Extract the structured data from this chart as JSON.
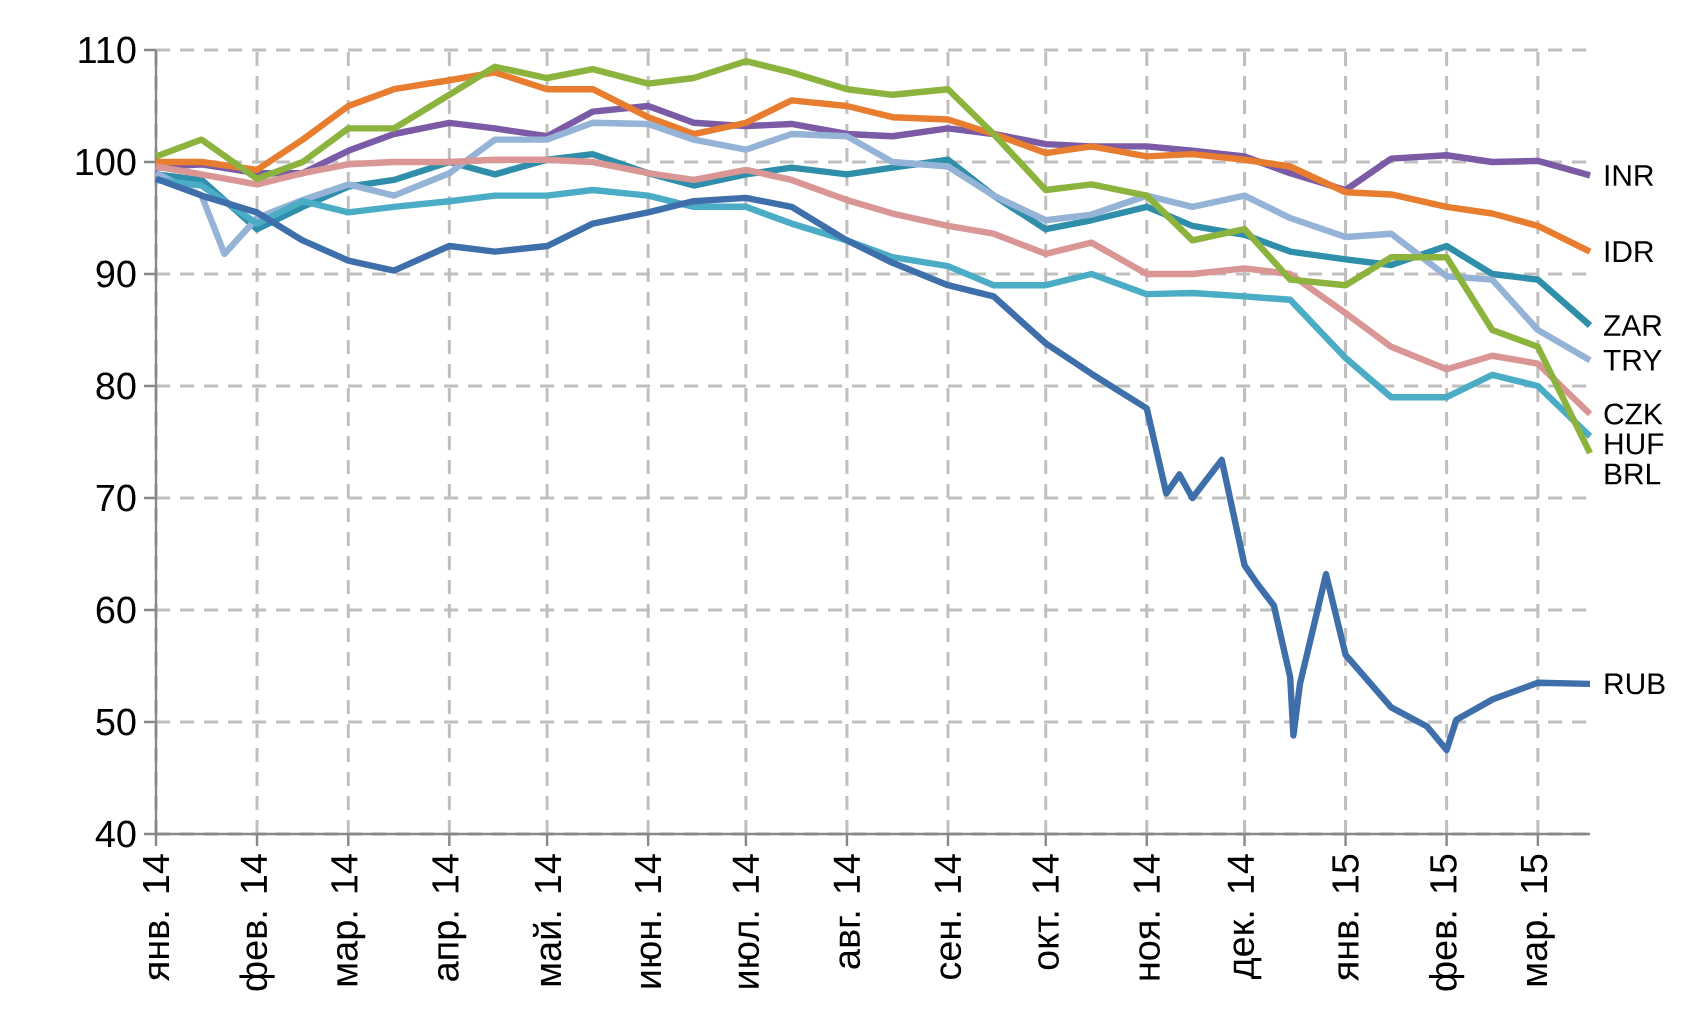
{
  "chart_data": {
    "type": "line",
    "x": [
      "2014-01-01",
      "2014-01-15",
      "2014-02-01",
      "2014-02-15",
      "2014-03-01",
      "2014-03-15",
      "2014-04-01",
      "2014-04-15",
      "2014-05-01",
      "2014-05-15",
      "2014-06-01",
      "2014-06-15",
      "2014-07-01",
      "2014-07-15",
      "2014-08-01",
      "2014-08-15",
      "2014-09-01",
      "2014-09-15",
      "2014-10-01",
      "2014-10-15",
      "2014-11-01",
      "2014-11-15",
      "2014-12-01",
      "2014-12-15",
      "2015-01-01",
      "2015-01-15",
      "2015-02-01",
      "2015-02-15",
      "2015-03-01",
      "2015-03-17"
    ],
    "series": [
      {
        "name": "INR",
        "color": "#7b5aa6",
        "values": [
          99.5,
          99.8,
          99,
          99,
          101,
          102.5,
          103.5,
          103,
          102.3,
          104.5,
          105,
          103.5,
          103.2,
          103.4,
          102.5,
          102.3,
          103,
          102.5,
          101.6,
          101.4,
          101.4,
          101,
          100.5,
          99,
          97.5,
          100.3,
          100.6,
          100,
          100.1,
          98.8
        ]
      },
      {
        "name": "IDR",
        "color": "#e87d2f",
        "values": [
          100,
          100,
          99.3,
          102,
          105,
          106.5,
          107.3,
          108,
          106.5,
          106.5,
          104,
          102.5,
          103.5,
          105.5,
          105,
          104,
          103.8,
          102.5,
          100.8,
          101.4,
          100.5,
          100.7,
          100.2,
          99.6,
          97.3,
          97.1,
          96,
          95.4,
          94.3,
          92
        ]
      },
      {
        "name": "ZAR",
        "color": "#2f8fab",
        "values": [
          98.9,
          98.4,
          94,
          96,
          97.8,
          98.4,
          100,
          98.9,
          100.2,
          100.7,
          99,
          97.9,
          98.9,
          99.5,
          98.9,
          99.5,
          100.2,
          97,
          94,
          94.8,
          96,
          94.3,
          93.5,
          92,
          91.3,
          90.8,
          92.5,
          90,
          89.5,
          85.4
        ]
      },
      {
        "name": "TRY",
        "color": "#95b3d7",
        "x": [
          "2014-01-01",
          "2014-01-15",
          "2014-01-22",
          "2014-02-01",
          "2014-02-15",
          "2014-03-01",
          "2014-03-15",
          "2014-04-01",
          "2014-04-15",
          "2014-05-01",
          "2014-05-15",
          "2014-06-01",
          "2014-06-15",
          "2014-07-01",
          "2014-07-15",
          "2014-08-01",
          "2014-08-15",
          "2014-09-01",
          "2014-09-15",
          "2014-10-01",
          "2014-10-15",
          "2014-11-01",
          "2014-11-15",
          "2014-12-01",
          "2014-12-15",
          "2015-01-01",
          "2015-01-15",
          "2015-02-01",
          "2015-02-15",
          "2015-03-01",
          "2015-03-17"
        ],
        "values": [
          99,
          97,
          91.8,
          95,
          96.6,
          98,
          97,
          99,
          102,
          102,
          103.5,
          103.4,
          102,
          101.1,
          102.5,
          102.3,
          100,
          99.6,
          97,
          94.8,
          95.3,
          97,
          96,
          97,
          95,
          93.3,
          93.6,
          89.8,
          89.5,
          85,
          82.3
        ]
      },
      {
        "name": "CZK",
        "color": "#d99694",
        "values": [
          99.6,
          98.9,
          98,
          99,
          99.8,
          100,
          100,
          100.2,
          100.2,
          100,
          99,
          98.4,
          99.3,
          98.4,
          96.6,
          95.4,
          94.3,
          93.6,
          91.8,
          92.8,
          90,
          90,
          90.5,
          90,
          86.5,
          83.5,
          81.5,
          82.7,
          82,
          77.5
        ]
      },
      {
        "name": "HUF",
        "color": "#4bacc6",
        "values": [
          98.4,
          97.9,
          94.5,
          96.5,
          95.5,
          96,
          96.5,
          97,
          97,
          97.5,
          97,
          96,
          96,
          94.5,
          93,
          91.5,
          90.7,
          89,
          89,
          90,
          88.2,
          88.3,
          88,
          87.7,
          82.5,
          79,
          79,
          81,
          80,
          75.5
        ]
      },
      {
        "name": "BRL",
        "color": "#8db33f",
        "values": [
          100.5,
          102,
          98.5,
          100,
          103,
          103,
          106,
          108.5,
          107.5,
          108.3,
          107,
          107.5,
          109,
          108,
          106.5,
          106,
          106.5,
          102.5,
          97.5,
          98,
          97,
          93,
          94,
          89.5,
          89,
          91.5,
          91.5,
          85,
          83.5,
          74
        ]
      },
      {
        "name": "RUB",
        "color": "#3f6fab",
        "x": [
          "2014-01-01",
          "2014-01-15",
          "2014-02-01",
          "2014-02-15",
          "2014-03-01",
          "2014-03-15",
          "2014-04-01",
          "2014-04-15",
          "2014-05-01",
          "2014-05-15",
          "2014-06-01",
          "2014-06-15",
          "2014-07-01",
          "2014-07-15",
          "2014-08-01",
          "2014-08-15",
          "2014-09-01",
          "2014-09-15",
          "2014-10-01",
          "2014-10-15",
          "2014-11-01",
          "2014-11-07",
          "2014-11-11",
          "2014-11-15",
          "2014-11-24",
          "2014-12-01",
          "2014-12-05",
          "2014-12-10",
          "2014-12-15",
          "2014-12-16",
          "2014-12-18",
          "2014-12-26",
          "2015-01-01",
          "2015-01-15",
          "2015-01-26",
          "2015-02-01",
          "2015-02-04",
          "2015-02-15",
          "2015-03-01",
          "2015-03-17"
        ],
        "values": [
          98.5,
          97,
          95.5,
          93,
          91.2,
          90.3,
          92.5,
          92,
          92.5,
          94.5,
          95.5,
          96.5,
          96.8,
          96,
          93,
          91,
          89,
          88,
          83.8,
          81.1,
          78,
          70.4,
          72.1,
          70,
          73.4,
          64,
          62.3,
          60.4,
          54,
          48.8,
          53.4,
          63.2,
          56,
          51.3,
          49.6,
          47.5,
          50.2,
          52,
          53.5,
          53.4
        ]
      }
    ],
    "xlim": [
      "2014-01-01",
      "2015-03-17"
    ],
    "xticks": [
      {
        "value": "2014-01-01",
        "label": "янв. 14"
      },
      {
        "value": "2014-02-01",
        "label": "фев. 14"
      },
      {
        "value": "2014-03-01",
        "label": "мар. 14"
      },
      {
        "value": "2014-04-01",
        "label": "апр. 14"
      },
      {
        "value": "2014-05-01",
        "label": "май. 14"
      },
      {
        "value": "2014-06-01",
        "label": "июн. 14"
      },
      {
        "value": "2014-07-01",
        "label": "июл. 14"
      },
      {
        "value": "2014-08-01",
        "label": "авг. 14"
      },
      {
        "value": "2014-09-01",
        "label": "сен. 14"
      },
      {
        "value": "2014-10-01",
        "label": "окт. 14"
      },
      {
        "value": "2014-11-01",
        "label": "ноя. 14"
      },
      {
        "value": "2014-12-01",
        "label": "дек. 14"
      },
      {
        "value": "2015-01-01",
        "label": "янв. 15"
      },
      {
        "value": "2015-02-01",
        "label": "фев. 15"
      },
      {
        "value": "2015-03-01",
        "label": "мар. 15"
      }
    ],
    "ylim": [
      40,
      110
    ],
    "yticks": [
      40,
      50,
      60,
      70,
      80,
      90,
      100,
      110
    ],
    "grid": true,
    "line_style": "solid"
  }
}
